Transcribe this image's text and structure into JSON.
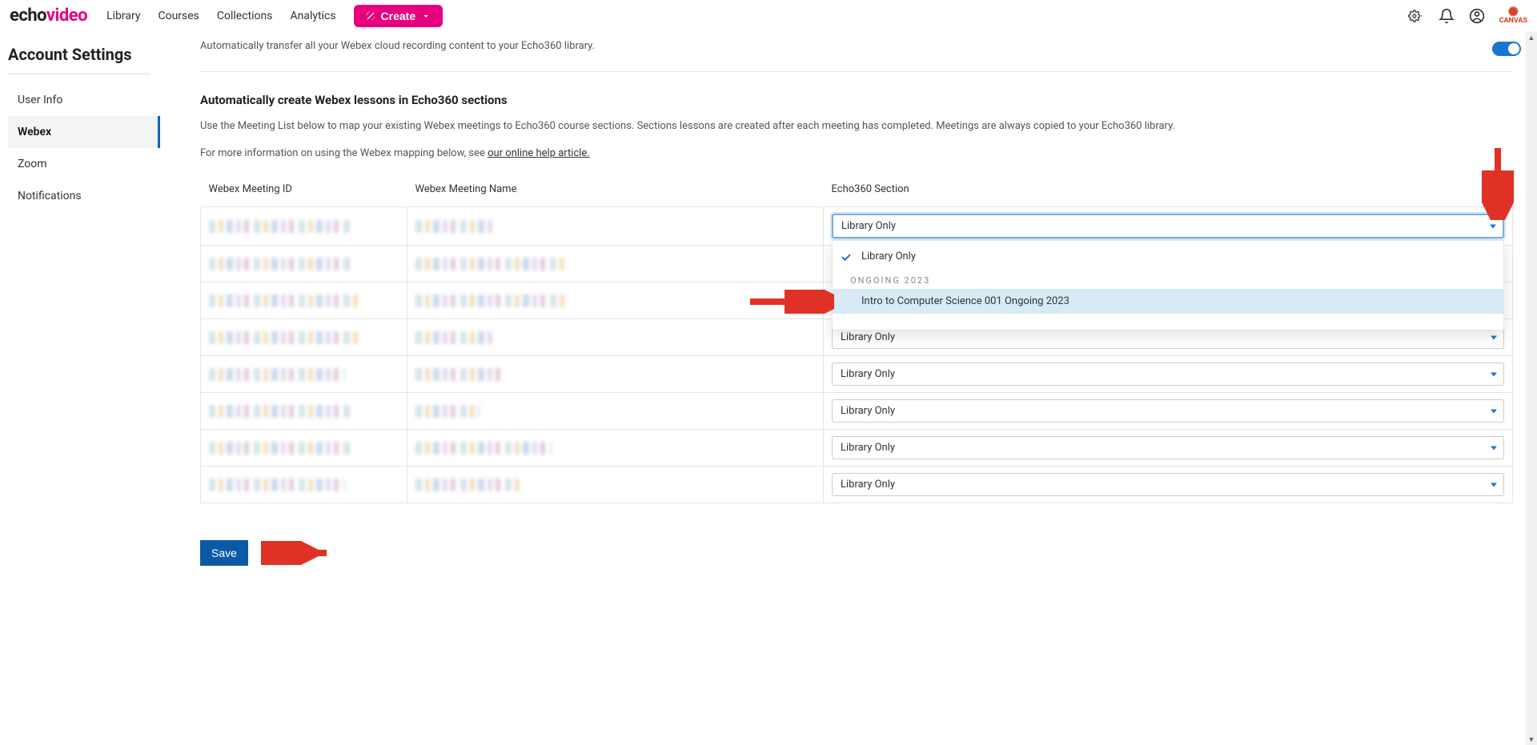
{
  "brand": {
    "part1": "echo",
    "part2": "video"
  },
  "nav": {
    "links": [
      "Library",
      "Courses",
      "Collections",
      "Analytics"
    ],
    "create_label": "Create"
  },
  "nav_right": {
    "canvas_label": "CANVAS"
  },
  "sidebar": {
    "title": "Account Settings",
    "items": [
      {
        "label": "User Info",
        "active": false
      },
      {
        "label": "Webex",
        "active": true
      },
      {
        "label": "Zoom",
        "active": false
      },
      {
        "label": "Notifications",
        "active": false
      }
    ]
  },
  "content": {
    "intro_line": "Automatically transfer all your Webex cloud recording content to your Echo360 library.",
    "section_title": "Automatically create Webex lessons in Echo360 sections",
    "section_desc_1": "Use the Meeting List below to map your existing Webex meetings to Echo360 course sections. Sections lessons are created after each meeting has completed. Meetings are always copied to your Echo360 library.",
    "section_desc_2_prefix": "For more information on using the Webex mapping below, see ",
    "section_desc_2_link": "our online help article.",
    "toggle_on": true
  },
  "table": {
    "col_id": "Webex Meeting ID",
    "col_name": "Webex Meeting Name",
    "col_section": "Echo360 Section",
    "row_count": 8,
    "default_select_label": "Library Only",
    "pixelate_widths": {
      "ids": [
        "px-w-180",
        "px-w-180",
        "px-w-190",
        "px-w-190",
        "px-w-170",
        "px-w-180",
        "px-w-180",
        "px-w-170"
      ],
      "names": [
        "px-w-100",
        "px-w-190",
        "px-w-190",
        "px-w-100",
        "px-w-110",
        "px-w-80",
        "px-w-170",
        "px-w-130"
      ]
    }
  },
  "dropdown": {
    "selected_label": "Library Only",
    "group_header": "ONGOING 2023",
    "options": [
      {
        "type": "item",
        "label": "Library Only",
        "selected": true,
        "highlight": false
      },
      {
        "type": "group",
        "label": "ONGOING 2023"
      },
      {
        "type": "item",
        "label": "Intro to Computer Science 001 Ongoing 2023",
        "selected": false,
        "highlight": true
      },
      {
        "type": "pixelated"
      }
    ]
  },
  "save_label": "Save",
  "colors": {
    "accent_pink": "#e6007e",
    "accent_blue": "#0a5aa6",
    "dropdown_border": "#79b1dd",
    "caret_blue": "#1976d2",
    "arrow_red": "#e03127"
  }
}
